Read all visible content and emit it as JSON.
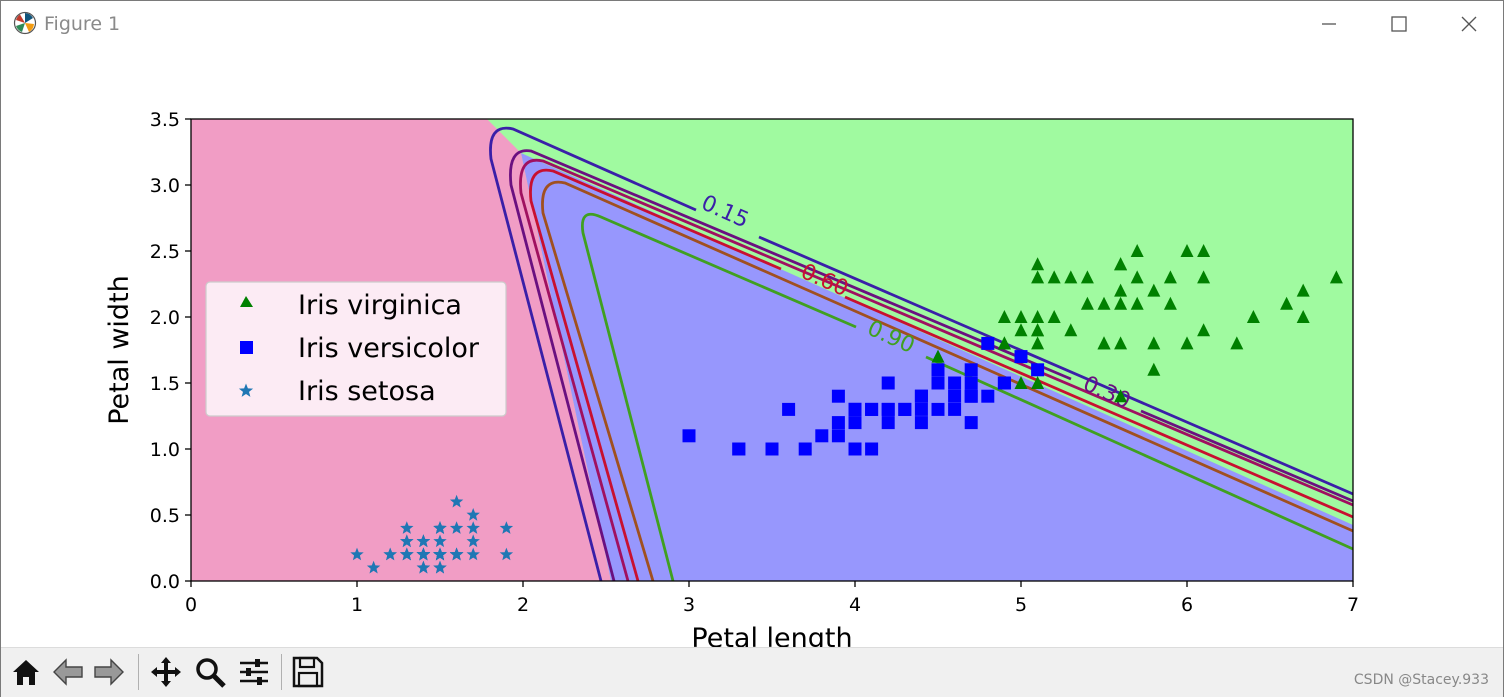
{
  "window": {
    "title": "Figure 1",
    "minimize_icon": "minimize-icon",
    "maximize_icon": "maximize-icon",
    "close_icon": "close-icon"
  },
  "toolbar": {
    "buttons": [
      {
        "name": "home",
        "icon": "home-icon"
      },
      {
        "name": "back",
        "icon": "back-arrow-icon"
      },
      {
        "name": "forward",
        "icon": "forward-arrow-icon"
      },
      {
        "name": "pan",
        "icon": "pan-icon"
      },
      {
        "name": "zoom",
        "icon": "zoom-icon"
      },
      {
        "name": "configure",
        "icon": "sliders-icon"
      },
      {
        "name": "save",
        "icon": "save-icon"
      }
    ],
    "watermark": "CSDN @Stacey.933"
  },
  "chart_data": {
    "type": "scatter",
    "xlabel": "Petal length",
    "ylabel": "Petal width",
    "xlim": [
      0,
      7
    ],
    "ylim": [
      0,
      3.5
    ],
    "xticks": [
      "0",
      "1",
      "2",
      "3",
      "4",
      "5",
      "6",
      "7"
    ],
    "yticks": [
      "0.0",
      "0.5",
      "1.0",
      "1.5",
      "2.0",
      "2.5",
      "3.0",
      "3.5"
    ],
    "grid": false,
    "legend_position": "center-left",
    "region_colors": {
      "setosa": "#f19dc5",
      "versicolor": "#9797fd",
      "virginica": "#a0faa0"
    },
    "contour_labels": [
      {
        "text": "0.15",
        "x": 3.2,
        "y": 2.75,
        "color": "#3a1fa8"
      },
      {
        "text": "0.60",
        "x": 3.8,
        "y": 2.23,
        "color": "#c81030"
      },
      {
        "text": "0.90",
        "x": 4.2,
        "y": 1.8,
        "color": "#40a020"
      },
      {
        "text": "0.30",
        "x": 5.5,
        "y": 1.38,
        "color": "#6a1080"
      }
    ],
    "series": [
      {
        "name": "Iris virginica",
        "marker": "triangle",
        "color": "#008000",
        "x": [
          6.0,
          5.1,
          5.9,
          5.6,
          5.8,
          6.6,
          4.5,
          6.3,
          5.8,
          6.1,
          5.1,
          5.3,
          5.5,
          5.0,
          5.1,
          5.3,
          5.5,
          6.7,
          6.9,
          5.0,
          5.7,
          4.9,
          6.7,
          4.9,
          5.7,
          6.0,
          4.8,
          4.9,
          5.6,
          5.8,
          6.1,
          6.4,
          5.6,
          5.1,
          5.6,
          6.1,
          5.6,
          5.5,
          4.8,
          5.4,
          5.6,
          5.1,
          5.1,
          5.9,
          5.7,
          5.2,
          5.0,
          5.2,
          5.4,
          5.1
        ],
        "y": [
          2.5,
          1.9,
          2.1,
          1.8,
          2.2,
          2.1,
          1.7,
          1.8,
          1.8,
          2.5,
          2.0,
          1.9,
          2.1,
          2.0,
          2.4,
          2.3,
          1.8,
          2.2,
          2.3,
          1.5,
          2.3,
          2.0,
          2.0,
          1.8,
          2.1,
          1.8,
          1.8,
          1.8,
          2.1,
          1.6,
          1.9,
          2.0,
          2.2,
          1.5,
          1.4,
          2.3,
          2.4,
          1.8,
          1.8,
          2.1,
          2.4,
          2.3,
          1.9,
          2.3,
          2.5,
          2.3,
          1.9,
          2.0,
          2.3,
          1.8
        ]
      },
      {
        "name": "Iris versicolor",
        "marker": "square",
        "color": "#0000ff",
        "x": [
          4.7,
          4.5,
          4.9,
          4.0,
          4.6,
          4.5,
          4.7,
          3.3,
          4.6,
          3.9,
          3.5,
          4.2,
          4.0,
          4.7,
          3.6,
          4.4,
          4.5,
          4.1,
          4.5,
          3.9,
          4.8,
          4.0,
          4.9,
          4.7,
          4.3,
          4.4,
          4.8,
          5.0,
          4.5,
          3.5,
          3.8,
          3.7,
          3.9,
          5.1,
          4.5,
          4.5,
          4.7,
          4.4,
          4.1,
          4.0,
          4.4,
          4.6,
          4.0,
          3.3,
          4.2,
          4.2,
          4.2,
          4.3,
          3.0,
          4.1
        ],
        "y": [
          1.4,
          1.5,
          1.5,
          1.3,
          1.5,
          1.3,
          1.6,
          1.0,
          1.3,
          1.4,
          1.0,
          1.5,
          1.0,
          1.4,
          1.3,
          1.4,
          1.5,
          1.0,
          1.5,
          1.1,
          1.8,
          1.3,
          1.5,
          1.2,
          1.3,
          1.4,
          1.4,
          1.7,
          1.5,
          1.0,
          1.1,
          1.0,
          1.2,
          1.6,
          1.5,
          1.6,
          1.5,
          1.3,
          1.3,
          1.3,
          1.2,
          1.4,
          1.2,
          1.0,
          1.3,
          1.2,
          1.3,
          1.3,
          1.1,
          1.3
        ]
      },
      {
        "name": "Iris setosa",
        "marker": "star",
        "color": "#1f77b4",
        "x": [
          1.4,
          1.4,
          1.3,
          1.5,
          1.4,
          1.7,
          1.4,
          1.5,
          1.4,
          1.5,
          1.5,
          1.6,
          1.4,
          1.1,
          1.2,
          1.5,
          1.3,
          1.4,
          1.7,
          1.5,
          1.7,
          1.5,
          1.0,
          1.7,
          1.9,
          1.6,
          1.6,
          1.5,
          1.4,
          1.6,
          1.6,
          1.5,
          1.5,
          1.4,
          1.5,
          1.2,
          1.3,
          1.4,
          1.3,
          1.5,
          1.3,
          1.3,
          1.3,
          1.6,
          1.9,
          1.4,
          1.6,
          1.4,
          1.5,
          1.4
        ],
        "y": [
          0.2,
          0.2,
          0.2,
          0.2,
          0.2,
          0.4,
          0.3,
          0.2,
          0.2,
          0.1,
          0.2,
          0.2,
          0.1,
          0.1,
          0.2,
          0.4,
          0.4,
          0.3,
          0.3,
          0.3,
          0.2,
          0.4,
          0.2,
          0.5,
          0.2,
          0.2,
          0.4,
          0.2,
          0.2,
          0.2,
          0.2,
          0.4,
          0.1,
          0.2,
          0.2,
          0.2,
          0.2,
          0.1,
          0.2,
          0.2,
          0.3,
          0.3,
          0.2,
          0.6,
          0.4,
          0.3,
          0.2,
          0.2,
          0.2,
          0.2
        ]
      }
    ]
  }
}
